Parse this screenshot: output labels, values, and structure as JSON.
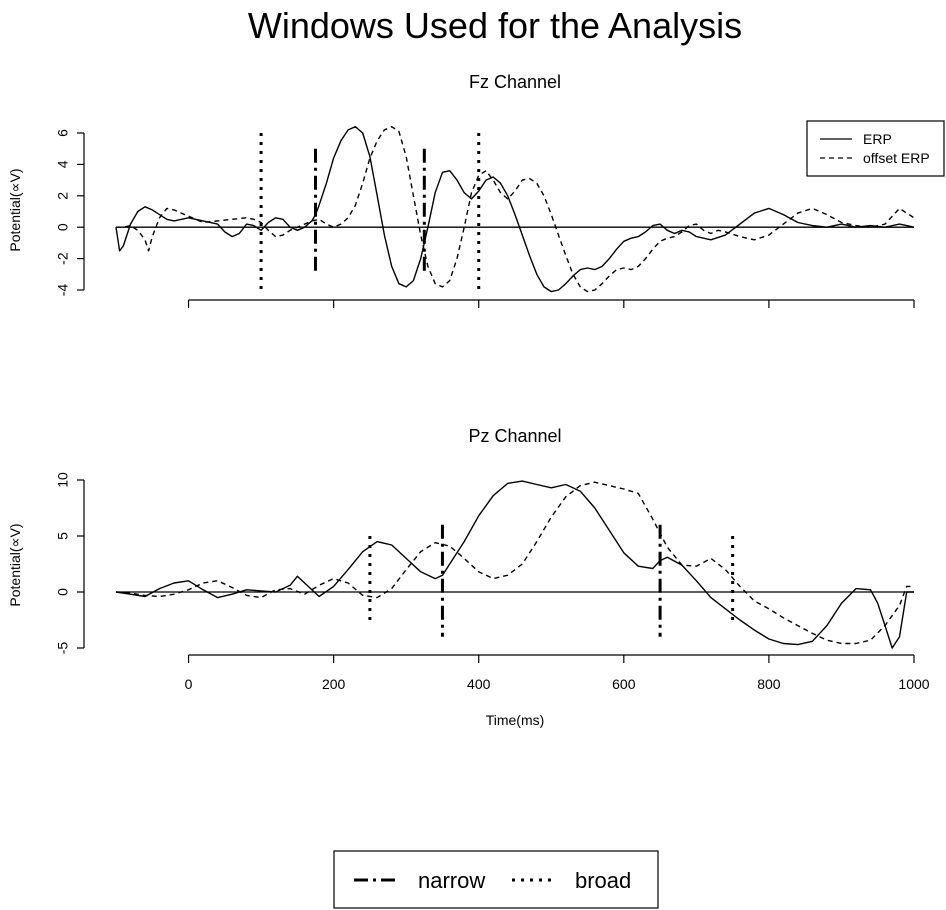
{
  "title": "Windows Used for the Analysis",
  "chart_data": [
    {
      "type": "line",
      "title": "Fz Channel",
      "xlabel": "",
      "ylabel": "Potential(∝V)",
      "xlim": [
        -100,
        1000
      ],
      "ylim": [
        -4,
        6
      ],
      "yticks": [
        -4,
        -2,
        0,
        2,
        4,
        6
      ],
      "xticks": [
        0,
        200,
        400,
        600,
        800,
        1000
      ],
      "x_tick_labels_shown": false,
      "legend": {
        "position": "top-right",
        "entries": [
          "ERP",
          "offset ERP"
        ]
      },
      "series": [
        {
          "name": "ERP",
          "style": "solid",
          "x": [
            -100,
            -95,
            -90,
            -80,
            -70,
            -60,
            -50,
            -40,
            -30,
            -20,
            0,
            20,
            40,
            50,
            60,
            70,
            80,
            90,
            100,
            110,
            120,
            130,
            140,
            150,
            160,
            170,
            175,
            180,
            190,
            200,
            210,
            220,
            230,
            240,
            250,
            260,
            270,
            280,
            290,
            300,
            310,
            320,
            330,
            340,
            350,
            360,
            370,
            380,
            390,
            400,
            410,
            420,
            430,
            440,
            450,
            460,
            470,
            480,
            490,
            500,
            510,
            520,
            530,
            540,
            550,
            560,
            570,
            580,
            590,
            600,
            610,
            620,
            630,
            640,
            650,
            660,
            670,
            680,
            690,
            700,
            720,
            740,
            760,
            780,
            800,
            820,
            840,
            860,
            880,
            900,
            920,
            940,
            960,
            980,
            990,
            1000
          ],
          "values": [
            0,
            -1.5,
            -1.2,
            0.2,
            1.0,
            1.3,
            1.1,
            0.8,
            0.5,
            0.4,
            0.6,
            0.4,
            0.2,
            -0.3,
            -0.6,
            -0.4,
            0.2,
            0.1,
            -0.2,
            0.3,
            0.6,
            0.5,
            0,
            -0.2,
            0,
            0.4,
            0.8,
            1.4,
            2.8,
            4.4,
            5.5,
            6.2,
            6.4,
            6.0,
            4.5,
            2.0,
            -0.5,
            -2.5,
            -3.6,
            -3.8,
            -3.4,
            -2.0,
            0,
            2.2,
            3.5,
            3.6,
            3.0,
            2.2,
            1.8,
            2.3,
            3.0,
            3.2,
            2.8,
            2.0,
            0.8,
            -0.5,
            -1.8,
            -3.0,
            -3.8,
            -4.1,
            -4.0,
            -3.6,
            -3.1,
            -2.7,
            -2.6,
            -2.7,
            -2.5,
            -2.0,
            -1.4,
            -0.9,
            -0.7,
            -0.6,
            -0.3,
            0.1,
            0.2,
            -0.2,
            -0.4,
            -0.2,
            -0.3,
            -0.6,
            -0.8,
            -0.5,
            0.2,
            0.9,
            1.2,
            0.8,
            0.3,
            0.1,
            0,
            0.2,
            0,
            0.1,
            0,
            0.2,
            0.1,
            0
          ]
        },
        {
          "name": "offset ERP",
          "style": "dashed",
          "x": [
            -100,
            -90,
            -80,
            -70,
            -60,
            -55,
            -50,
            -40,
            -30,
            -20,
            -10,
            0,
            10,
            20,
            40,
            60,
            80,
            90,
            100,
            110,
            120,
            130,
            140,
            150,
            160,
            170,
            180,
            190,
            200,
            210,
            220,
            230,
            240,
            250,
            260,
            270,
            280,
            290,
            300,
            310,
            320,
            330,
            340,
            350,
            360,
            370,
            380,
            390,
            400,
            410,
            420,
            430,
            440,
            450,
            460,
            470,
            480,
            490,
            500,
            510,
            520,
            530,
            540,
            550,
            560,
            570,
            580,
            590,
            600,
            610,
            620,
            630,
            640,
            650,
            660,
            670,
            680,
            690,
            700,
            710,
            720,
            730,
            740,
            760,
            780,
            800,
            820,
            840,
            860,
            880,
            900,
            920,
            940,
            960,
            980,
            1000
          ],
          "values": [
            0,
            0,
            0.1,
            -0.2,
            -0.8,
            -1.5,
            -0.6,
            0.6,
            1.2,
            1.1,
            0.9,
            0.7,
            0.5,
            0.3,
            0.4,
            0.5,
            0.6,
            0.5,
            0.3,
            -0.2,
            -0.6,
            -0.5,
            -0.2,
            0,
            0.2,
            0.4,
            0.5,
            0.2,
            0,
            0.2,
            0.6,
            1.4,
            2.8,
            4.4,
            5.5,
            6.2,
            6.4,
            6.1,
            4.5,
            2.0,
            -0.5,
            -2.5,
            -3.6,
            -3.8,
            -3.4,
            -2.0,
            0,
            2.2,
            3.3,
            3.6,
            3.0,
            2.2,
            1.8,
            2.3,
            3.0,
            3.1,
            2.8,
            2.0,
            0.8,
            -0.5,
            -1.8,
            -3.0,
            -3.8,
            -4.1,
            -4.0,
            -3.6,
            -3.1,
            -2.7,
            -2.6,
            -2.7,
            -2.5,
            -2.0,
            -1.4,
            -0.9,
            -0.7,
            -0.6,
            -0.3,
            0.1,
            0.2,
            -0.2,
            -0.4,
            -0.2,
            -0.3,
            -0.6,
            -0.8,
            -0.5,
            0.2,
            0.9,
            1.2,
            0.8,
            0.3,
            0.1,
            0,
            0.2,
            1.2,
            0.6
          ]
        }
      ],
      "windows": [
        {
          "type": "broad",
          "x": 100,
          "y0": -4,
          "y1": 6
        },
        {
          "type": "narrow",
          "x": 175,
          "y0": -3,
          "y1": 5
        },
        {
          "type": "narrow",
          "x": 325,
          "y0": -3,
          "y1": 5
        },
        {
          "type": "broad",
          "x": 400,
          "y0": -4,
          "y1": 6
        }
      ]
    },
    {
      "type": "line",
      "title": "Pz Channel",
      "xlabel": "Time(ms)",
      "ylabel": "Potential(∝V)",
      "xlim": [
        -100,
        1000
      ],
      "ylim": [
        -5,
        10
      ],
      "yticks": [
        -5,
        0,
        5,
        10
      ],
      "xticks": [
        0,
        200,
        400,
        600,
        800,
        1000
      ],
      "x_tick_labels_shown": true,
      "series": [
        {
          "name": "ERP",
          "style": "solid",
          "x": [
            -100,
            -80,
            -60,
            -40,
            -20,
            0,
            20,
            40,
            60,
            80,
            100,
            120,
            140,
            150,
            160,
            180,
            200,
            220,
            240,
            260,
            280,
            300,
            320,
            340,
            350,
            360,
            380,
            400,
            420,
            440,
            460,
            480,
            500,
            520,
            540,
            560,
            580,
            600,
            620,
            640,
            650,
            660,
            680,
            700,
            720,
            740,
            760,
            780,
            800,
            820,
            840,
            860,
            880,
            900,
            920,
            940,
            950,
            960,
            970,
            980,
            990,
            1000
          ],
          "values": [
            0,
            -0.2,
            -0.4,
            0.3,
            0.8,
            1.0,
            0.2,
            -0.5,
            -0.2,
            0.2,
            0.1,
            0,
            0.6,
            1.4,
            0.8,
            -0.4,
            0.5,
            2.0,
            3.6,
            4.5,
            4.2,
            3.0,
            1.8,
            1.2,
            1.5,
            2.5,
            4.5,
            6.8,
            8.6,
            9.7,
            9.9,
            9.6,
            9.3,
            9.6,
            9.0,
            7.5,
            5.5,
            3.5,
            2.3,
            2.1,
            2.8,
            3.1,
            2.4,
            1.0,
            -0.5,
            -1.5,
            -2.5,
            -3.4,
            -4.2,
            -4.6,
            -4.7,
            -4.4,
            -3.0,
            -1.0,
            0.3,
            0.2,
            -1.0,
            -3.0,
            -5.0,
            -4.0,
            0,
            0
          ]
        },
        {
          "name": "offset ERP",
          "style": "dashed",
          "x": [
            -100,
            -80,
            -60,
            -40,
            -20,
            0,
            20,
            40,
            60,
            80,
            100,
            120,
            140,
            160,
            180,
            200,
            220,
            240,
            260,
            280,
            300,
            320,
            340,
            360,
            380,
            400,
            420,
            440,
            460,
            480,
            500,
            520,
            540,
            560,
            580,
            600,
            620,
            640,
            660,
            680,
            700,
            720,
            740,
            760,
            780,
            800,
            820,
            840,
            860,
            880,
            900,
            920,
            940,
            960,
            980,
            990,
            1000
          ],
          "values": [
            0,
            -0.1,
            -0.3,
            -0.4,
            -0.2,
            0.2,
            0.8,
            1.0,
            0.4,
            -0.3,
            -0.5,
            0.2,
            0.3,
            -0.2,
            0.6,
            1.2,
            0.8,
            -0.3,
            -0.5,
            0.3,
            2.0,
            3.6,
            4.4,
            4.1,
            3.0,
            1.8,
            1.2,
            1.5,
            2.5,
            4.5,
            6.7,
            8.5,
            9.5,
            9.8,
            9.5,
            9.2,
            8.8,
            6.5,
            4.0,
            2.4,
            2.3,
            3.0,
            2.0,
            0.5,
            -0.8,
            -1.5,
            -2.3,
            -3.0,
            -3.7,
            -4.3,
            -4.6,
            -4.6,
            -4.3,
            -3.0,
            -1.2,
            0.5,
            0.5
          ]
        }
      ],
      "windows": [
        {
          "type": "broad",
          "x": 250,
          "y0": -3,
          "y1": 5
        },
        {
          "type": "narrow",
          "x": 350,
          "y0": -4,
          "y1": 6
        },
        {
          "type": "narrow",
          "x": 650,
          "y0": -4,
          "y1": 6
        },
        {
          "type": "broad",
          "x": 750,
          "y0": -3,
          "y1": 5
        }
      ]
    }
  ],
  "bottom_legend": {
    "entries": [
      {
        "label": "narrow",
        "style": "dashdot"
      },
      {
        "label": "broad",
        "style": "dotted"
      }
    ]
  }
}
